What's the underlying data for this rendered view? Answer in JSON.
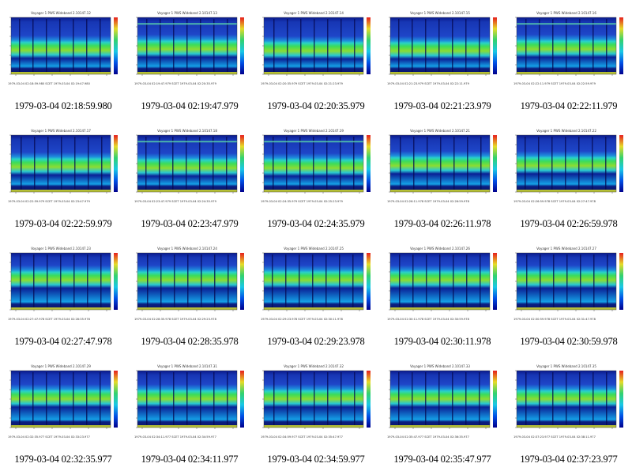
{
  "colors": {
    "background": "#ffffff",
    "cold": "#00008c",
    "mid": "#19c8e6",
    "hot": "#32d26e",
    "warm": "#e6dc28"
  },
  "panels": [
    {
      "caption": "1979-03-04 02:18:59.980",
      "plot_title": "Voyager 1 PWS Wideband 2.10147.12",
      "plot_date": "1979-03-04 02:18:59.980    SCET    1979-03-04 02:19:47.980",
      "style": 0
    },
    {
      "caption": "1979-03-04 02:19:47.979",
      "plot_title": "Voyager 1 PWS Wideband 2.10147.13",
      "plot_date": "1979-03-04 02:19:47.979    SCET    1979-03-04 02:20:35.979",
      "style": 1
    },
    {
      "caption": "1979-03-04 02:20:35.979",
      "plot_title": "Voyager 1 PWS Wideband 2.10147.14",
      "plot_date": "1979-03-04 02:20:35.979    SCET    1979-03-04 02:21:23.979",
      "style": 2
    },
    {
      "caption": "1979-03-04 02:21:23.979",
      "plot_title": "Voyager 1 PWS Wideband 2.10147.15",
      "plot_date": "1979-03-04 02:21:23.979    SCET    1979-03-04 02:22:11.979",
      "style": 3
    },
    {
      "caption": "1979-03-04 02:22:11.979",
      "plot_title": "Voyager 1 PWS Wideband 2.10147.16",
      "plot_date": "1979-03-04 02:22:11.979    SCET    1979-03-04 02:22:59.979",
      "style": 1
    },
    {
      "caption": "1979-03-04 02:22:59.979",
      "plot_title": "Voyager 1 PWS Wideband 2.10147.17",
      "plot_date": "1979-03-04 02:22:59.979    SCET    1979-03-04 02:23:47.979",
      "style": 4
    },
    {
      "caption": "1979-03-04 02:23:47.979",
      "plot_title": "Voyager 1 PWS Wideband 2.10147.18",
      "plot_date": "1979-03-04 02:23:47.979    SCET    1979-03-04 02:24:35.979",
      "style": 5
    },
    {
      "caption": "1979-03-04 02:24:35.979",
      "plot_title": "Voyager 1 PWS Wideband 2.10147.19",
      "plot_date": "1979-03-04 02:24:35.979    SCET    1979-03-04 02:25:23.979",
      "style": 5
    },
    {
      "caption": "1979-03-04 02:26:11.978",
      "plot_title": "Voyager 1 PWS Wideband 2.10147.21",
      "plot_date": "1979-03-04 02:26:11.978    SCET    1979-03-04 02:26:59.978",
      "style": 6
    },
    {
      "caption": "1979-03-04 02:26:59.978",
      "plot_title": "Voyager 1 PWS Wideband 2.10147.22",
      "plot_date": "1979-03-04 02:26:59.978    SCET    1979-03-04 02:27:47.978",
      "style": 6
    },
    {
      "caption": "1979-03-04 02:27:47.978",
      "plot_title": "Voyager 1 PWS Wideband 2.10147.23",
      "plot_date": "1979-03-04 02:27:47.978    SCET    1979-03-04 02:28:35.978",
      "style": 7
    },
    {
      "caption": "1979-03-04 02:28:35.978",
      "plot_title": "Voyager 1 PWS Wideband 2.10147.24",
      "plot_date": "1979-03-04 02:28:35.978    SCET    1979-03-04 02:29:23.978",
      "style": 7
    },
    {
      "caption": "1979-03-04 02:29:23.978",
      "plot_title": "Voyager 1 PWS Wideband 2.10147.25",
      "plot_date": "1979-03-04 02:29:23.978    SCET    1979-03-04 02:30:11.978",
      "style": 7
    },
    {
      "caption": "1979-03-04 02:30:11.978",
      "plot_title": "Voyager 1 PWS Wideband 2.10147.26",
      "plot_date": "1979-03-04 02:30:11.978    SCET    1979-03-04 02:30:59.978",
      "style": 7
    },
    {
      "caption": "1979-03-04 02:30:59.978",
      "plot_title": "Voyager 1 PWS Wideband 2.10147.27",
      "plot_date": "1979-03-04 02:30:59.978    SCET    1979-03-04 02:31:47.978",
      "style": 7
    },
    {
      "caption": "1979-03-04 02:32:35.977",
      "plot_title": "Voyager 1 PWS Wideband 2.10147.29",
      "plot_date": "1979-03-04 02:32:35.977    SCET    1979-03-04 02:33:23.977",
      "style": 8
    },
    {
      "caption": "1979-03-04 02:34:11.977",
      "plot_title": "Voyager 1 PWS Wideband 2.10147.31",
      "plot_date": "1979-03-04 02:34:11.977    SCET    1979-03-04 02:34:59.977",
      "style": 8
    },
    {
      "caption": "1979-03-04 02:34:59.977",
      "plot_title": "Voyager 1 PWS Wideband 2.10147.32",
      "plot_date": "1979-03-04 02:34:59.977    SCET    1979-03-04 02:35:47.977",
      "style": 8
    },
    {
      "caption": "1979-03-04 02:35:47.977",
      "plot_title": "Voyager 1 PWS Wideband 2.10147.33",
      "plot_date": "1979-03-04 02:35:47.977    SCET    1979-03-04 02:36:35.977",
      "style": 8
    },
    {
      "caption": "1979-03-04 02:37:23.977",
      "plot_title": "Voyager 1 PWS Wideband 2.10147.35",
      "plot_date": "1979-03-04 02:37:23.977    SCET    1979-03-04 02:38:11.977",
      "style": 9
    }
  ]
}
